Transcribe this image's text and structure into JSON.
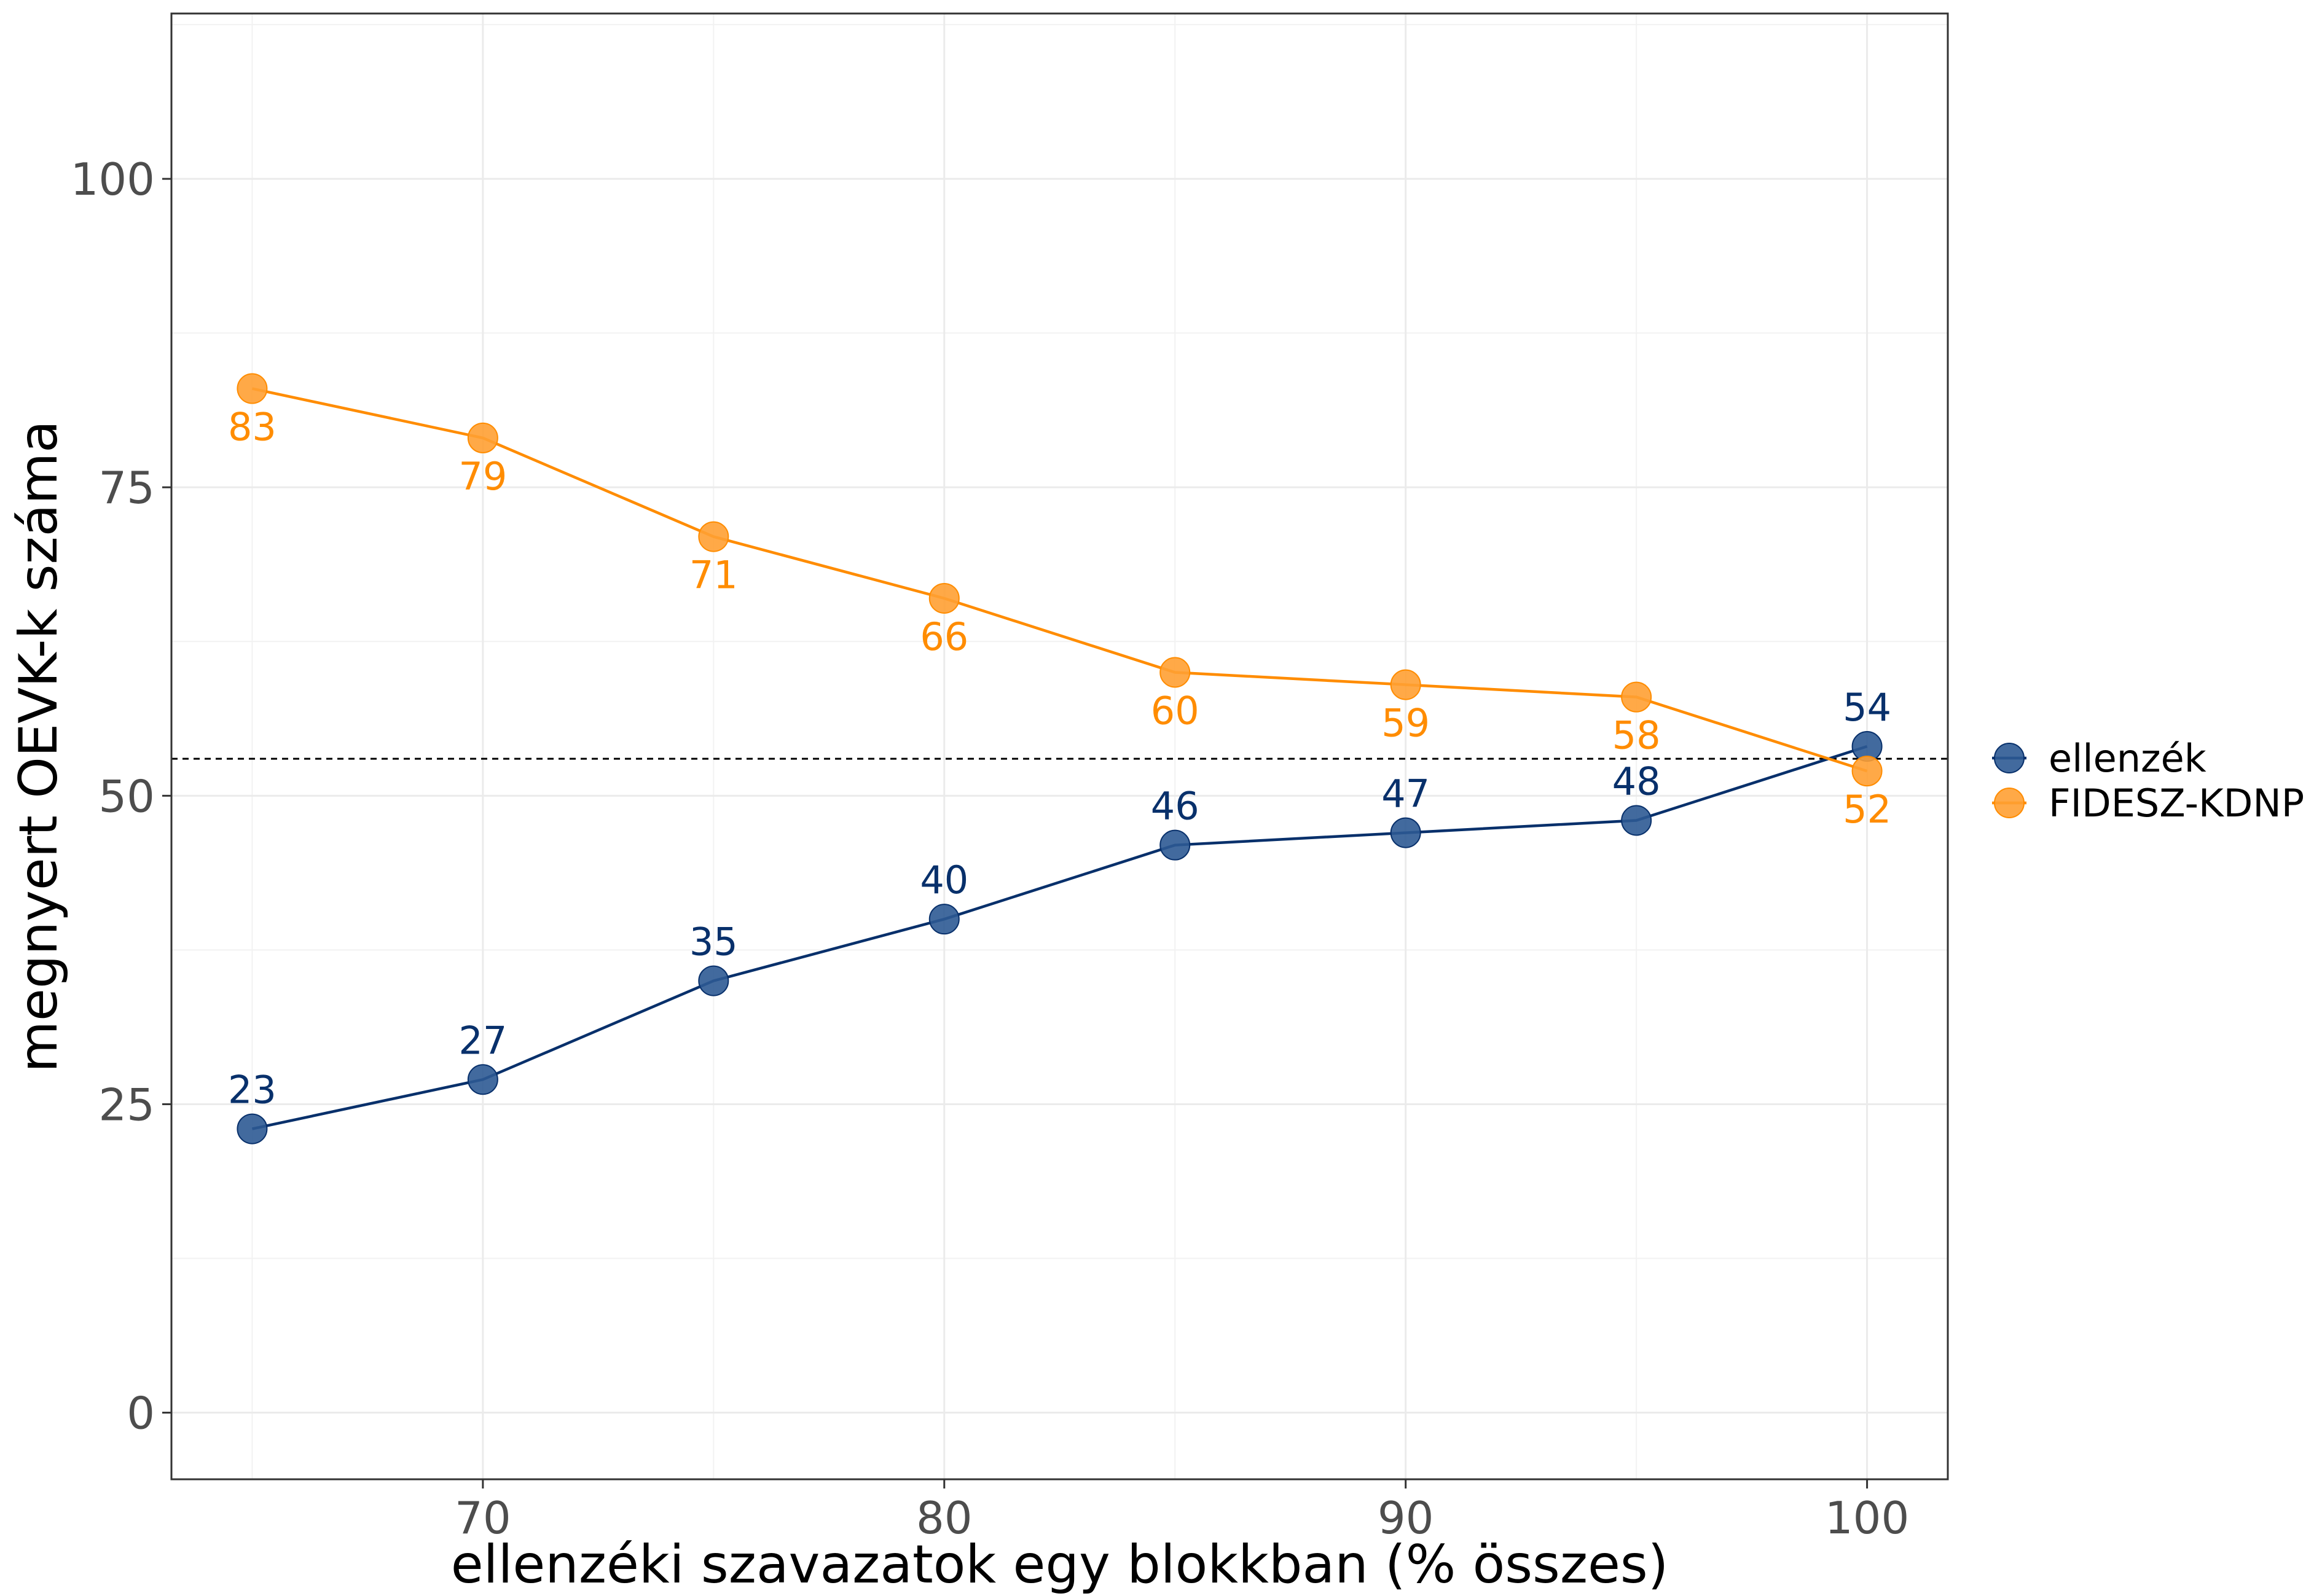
{
  "chart_data": {
    "type": "line",
    "title": "",
    "xlabel": "ellenzéki szavazatok egy blokkban (% összes)",
    "ylabel": "megnyert OEVK-k száma",
    "x": [
      65,
      70,
      75,
      80,
      85,
      90,
      95,
      100
    ],
    "xlim": [
      63.25,
      101.75
    ],
    "ylim": [
      -5.4,
      113.4
    ],
    "x_ticks": [
      70,
      80,
      90,
      100
    ],
    "x_tick_labels": [
      "70",
      "80",
      "90",
      "100"
    ],
    "y_ticks": [
      0,
      25,
      50,
      75,
      100
    ],
    "y_tick_labels": [
      "0",
      "25",
      "50",
      "75",
      "100"
    ],
    "grid": true,
    "reference_line": {
      "y": 53,
      "style": "dashed",
      "color": "#000000"
    },
    "legend": "right",
    "series": [
      {
        "name": "ellenzék",
        "color": "#08306b",
        "point_fill": "#2e5a94",
        "label_position": "above",
        "values": [
          23,
          27,
          35,
          40,
          46,
          47,
          48,
          54
        ],
        "labels": [
          "23",
          "27",
          "35",
          "40",
          "46",
          "47",
          "48",
          "54"
        ]
      },
      {
        "name": "FIDESZ-KDNP",
        "color": "#ff8c00",
        "point_fill": "#ffa033",
        "label_position": "below",
        "values": [
          83,
          79,
          71,
          66,
          60,
          59,
          58,
          52
        ],
        "labels": [
          "83",
          "79",
          "71",
          "66",
          "60",
          "59",
          "58",
          "52"
        ]
      }
    ]
  }
}
